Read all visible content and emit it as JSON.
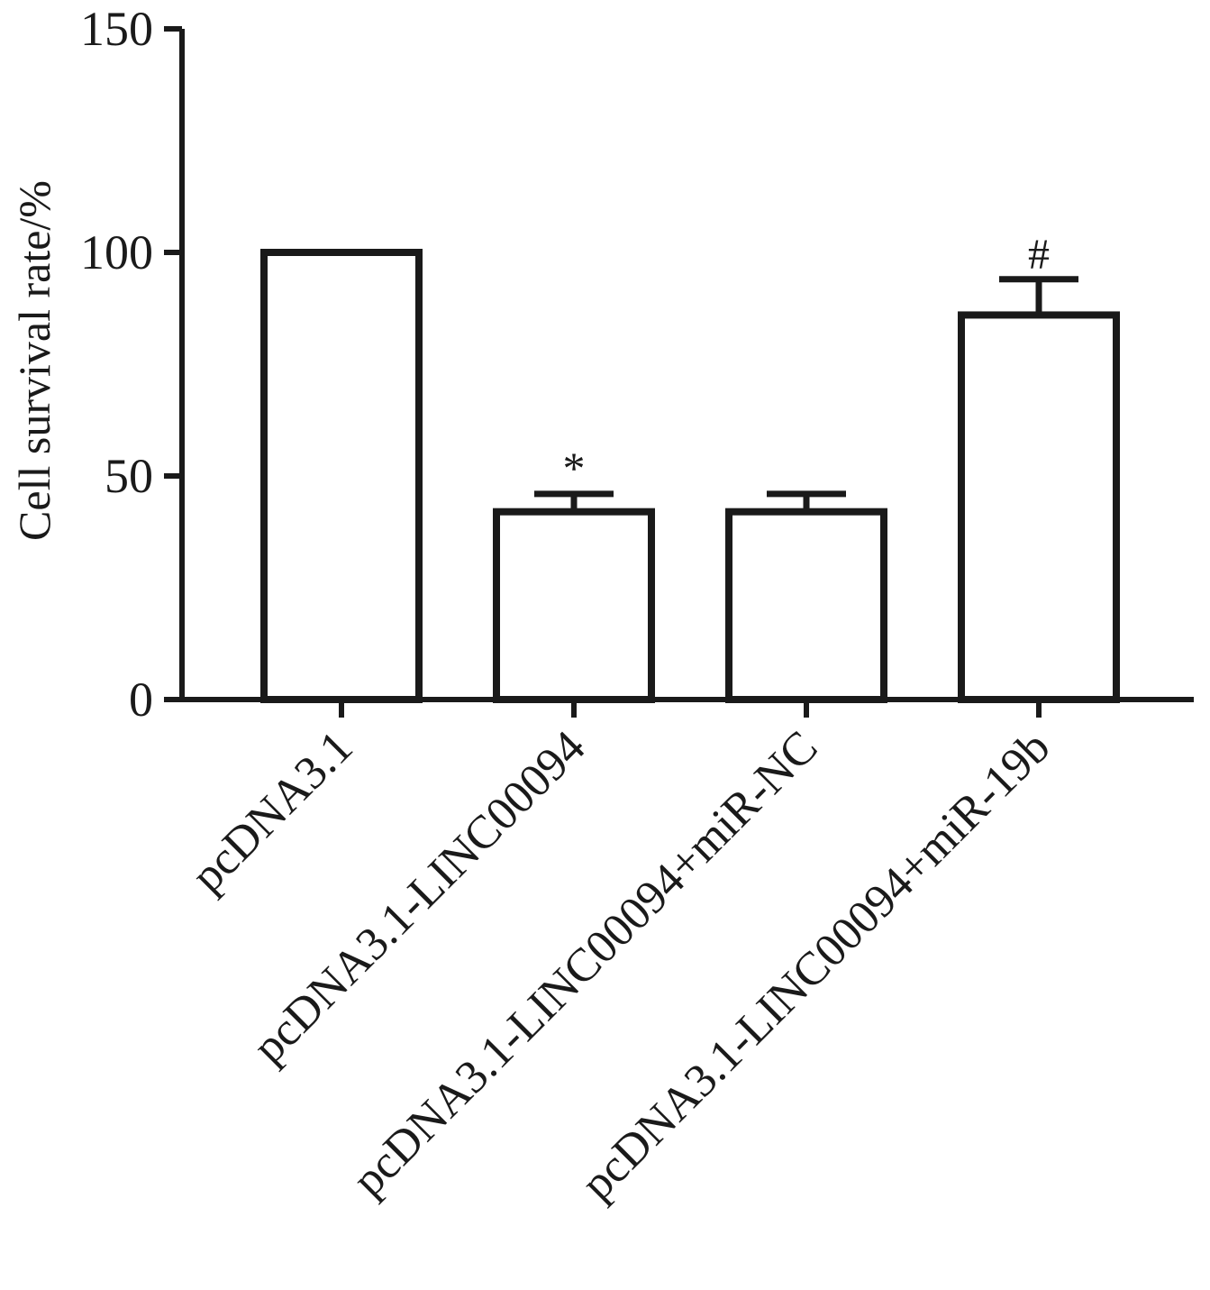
{
  "chart_data": {
    "type": "bar",
    "categories": [
      "pcDNA3.1",
      "pcDNA3.1-LINC00094",
      "pcDNA3.1-LINC00094+miR-NC",
      "pcDNA3.1-LINC00094+miR-19b"
    ],
    "values": [
      100,
      42,
      42,
      86
    ],
    "errors": [
      0,
      4,
      4,
      8
    ],
    "annotations": [
      "",
      "*",
      "",
      "#"
    ],
    "ylabel": "Cell survival rate/%",
    "xlabel": "",
    "ylim": [
      0,
      150
    ],
    "yticks": [
      0,
      50,
      100,
      150
    ],
    "grid": false,
    "bar_fill": "#ffffff",
    "bar_edge": "#1a1a1a"
  }
}
